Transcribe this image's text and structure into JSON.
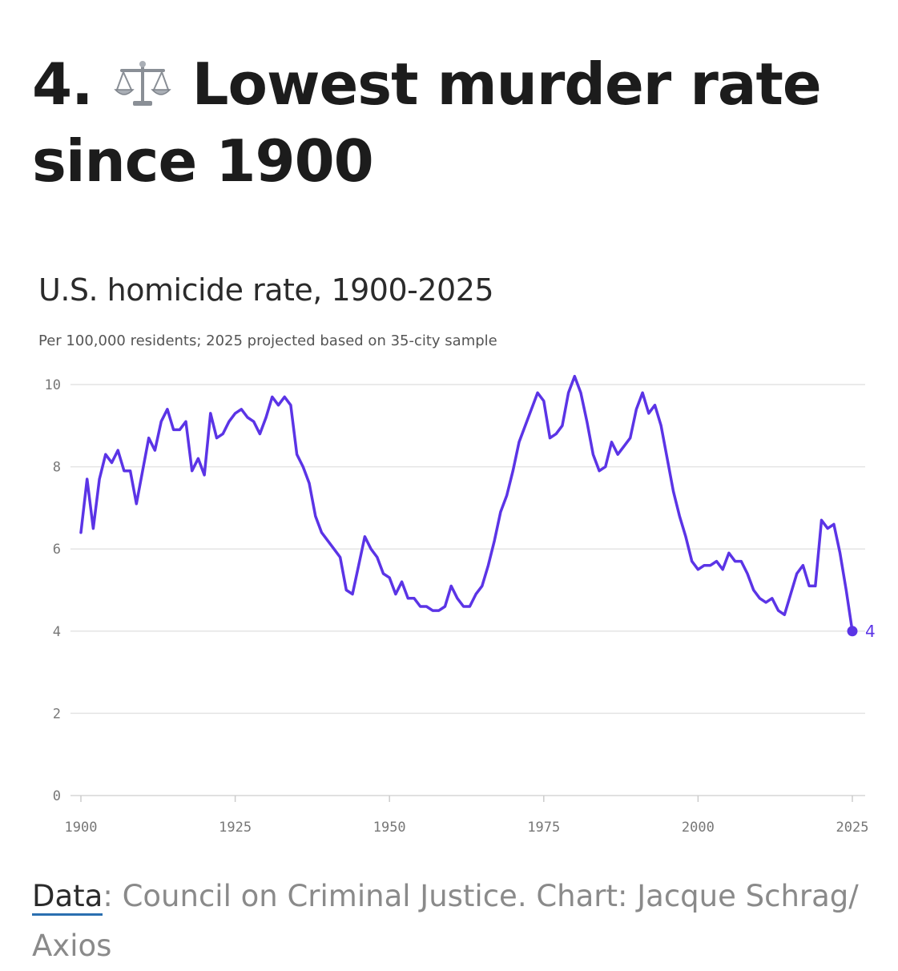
{
  "headline": {
    "number": "4.",
    "icon": "balance-scale-icon",
    "text": "Lowest murder rate since 1900"
  },
  "chart_data": {
    "type": "line",
    "title": "U.S. homicide rate, 1900-2025",
    "subtitle": "Per 100,000 residents; 2025 projected based on 35-city sample",
    "xlabel": "",
    "ylabel": "",
    "xlim": [
      1900,
      2025
    ],
    "ylim": [
      0,
      10
    ],
    "x_ticks": [
      "1900",
      "1925",
      "1950",
      "1975",
      "2000",
      "2025"
    ],
    "y_ticks": [
      "0",
      "2",
      "4",
      "6",
      "8",
      "10"
    ],
    "grid": true,
    "series": [
      {
        "color": "#5b34e6",
        "x": [
          1900,
          1901,
          1902,
          1903,
          1904,
          1905,
          1906,
          1907,
          1908,
          1909,
          1910,
          1911,
          1912,
          1913,
          1914,
          1915,
          1916,
          1917,
          1918,
          1919,
          1920,
          1921,
          1922,
          1923,
          1924,
          1925,
          1926,
          1927,
          1928,
          1929,
          1930,
          1931,
          1932,
          1933,
          1934,
          1935,
          1936,
          1937,
          1938,
          1939,
          1940,
          1941,
          1942,
          1943,
          1944,
          1945,
          1946,
          1947,
          1948,
          1949,
          1950,
          1951,
          1952,
          1953,
          1954,
          1955,
          1956,
          1957,
          1958,
          1959,
          1960,
          1961,
          1962,
          1963,
          1964,
          1965,
          1966,
          1967,
          1968,
          1969,
          1970,
          1971,
          1972,
          1973,
          1974,
          1975,
          1976,
          1977,
          1978,
          1979,
          1980,
          1981,
          1982,
          1983,
          1984,
          1985,
          1986,
          1987,
          1988,
          1989,
          1990,
          1991,
          1992,
          1993,
          1994,
          1995,
          1996,
          1997,
          1998,
          1999,
          2000,
          2001,
          2002,
          2003,
          2004,
          2005,
          2006,
          2007,
          2008,
          2009,
          2010,
          2011,
          2012,
          2013,
          2014,
          2015,
          2016,
          2017,
          2018,
          2019,
          2020,
          2021,
          2022,
          2023,
          2024,
          2025
        ],
        "values": [
          6.4,
          7.7,
          6.5,
          7.7,
          8.3,
          8.1,
          8.4,
          7.9,
          7.9,
          7.1,
          7.9,
          8.7,
          8.4,
          9.1,
          9.4,
          8.9,
          8.9,
          9.1,
          7.9,
          8.2,
          7.8,
          9.3,
          8.7,
          8.8,
          9.1,
          9.3,
          9.4,
          9.2,
          9.1,
          8.8,
          9.2,
          9.7,
          9.5,
          9.7,
          9.5,
          8.3,
          8.0,
          7.6,
          6.8,
          6.4,
          6.2,
          6.0,
          5.8,
          5.0,
          4.9,
          5.6,
          6.3,
          6.0,
          5.8,
          5.4,
          5.3,
          4.9,
          5.2,
          4.8,
          4.8,
          4.6,
          4.6,
          4.5,
          4.5,
          4.6,
          5.1,
          4.8,
          4.6,
          4.6,
          4.9,
          5.1,
          5.6,
          6.2,
          6.9,
          7.3,
          7.9,
          8.6,
          9.0,
          9.4,
          9.8,
          9.6,
          8.7,
          8.8,
          9.0,
          9.8,
          10.2,
          9.8,
          9.1,
          8.3,
          7.9,
          8.0,
          8.6,
          8.3,
          8.5,
          8.7,
          9.4,
          9.8,
          9.3,
          9.5,
          9.0,
          8.2,
          7.4,
          6.8,
          6.3,
          5.7,
          5.5,
          5.6,
          5.6,
          5.7,
          5.5,
          5.9,
          5.7,
          5.7,
          5.4,
          5.0,
          4.8,
          4.7,
          4.8,
          4.5,
          4.4,
          4.9,
          5.4,
          5.6,
          5.1,
          5.1,
          6.7,
          6.5,
          6.6,
          5.9,
          5.0,
          4.0
        ]
      }
    ],
    "end_label": "4"
  },
  "source": {
    "link_text": "Data",
    "rest_text": ": Council on Criminal Justice. Chart: Jacque Schrag/ Axios"
  }
}
